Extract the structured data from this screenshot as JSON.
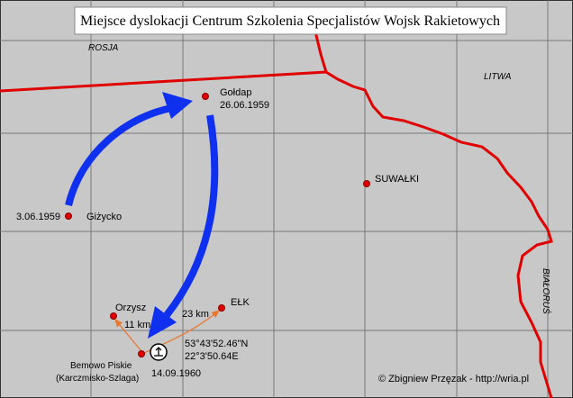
{
  "title": "Miejsce dyslokacji Centrum Szkolenia Specjalistów Wojsk Rakietowych",
  "countries": {
    "russia": "ROSJA",
    "lithuania": "LITWA",
    "belarus": "BIAŁORUŚ"
  },
  "places": {
    "goldap": {
      "name": "Gołdap",
      "date": "26.06.1959"
    },
    "suwalki": {
      "name": "SUWAŁKI"
    },
    "gizycko": {
      "name": "Giżycko",
      "date": "3.06.1959"
    },
    "orzysz": {
      "name": "Orzysz",
      "distance": "11 km"
    },
    "elk": {
      "name": "EŁK",
      "distance": "23 km"
    },
    "bemowo": {
      "name": "Bemowo Piskie",
      "subname": "(Karczmisko-Szlaga)",
      "date": "14.09.1960",
      "lat": "53°43'52.46\"N",
      "lon": "22°3'50.64E"
    }
  },
  "credit": "© Zbigniew Przęzak - http://wria.pl"
}
